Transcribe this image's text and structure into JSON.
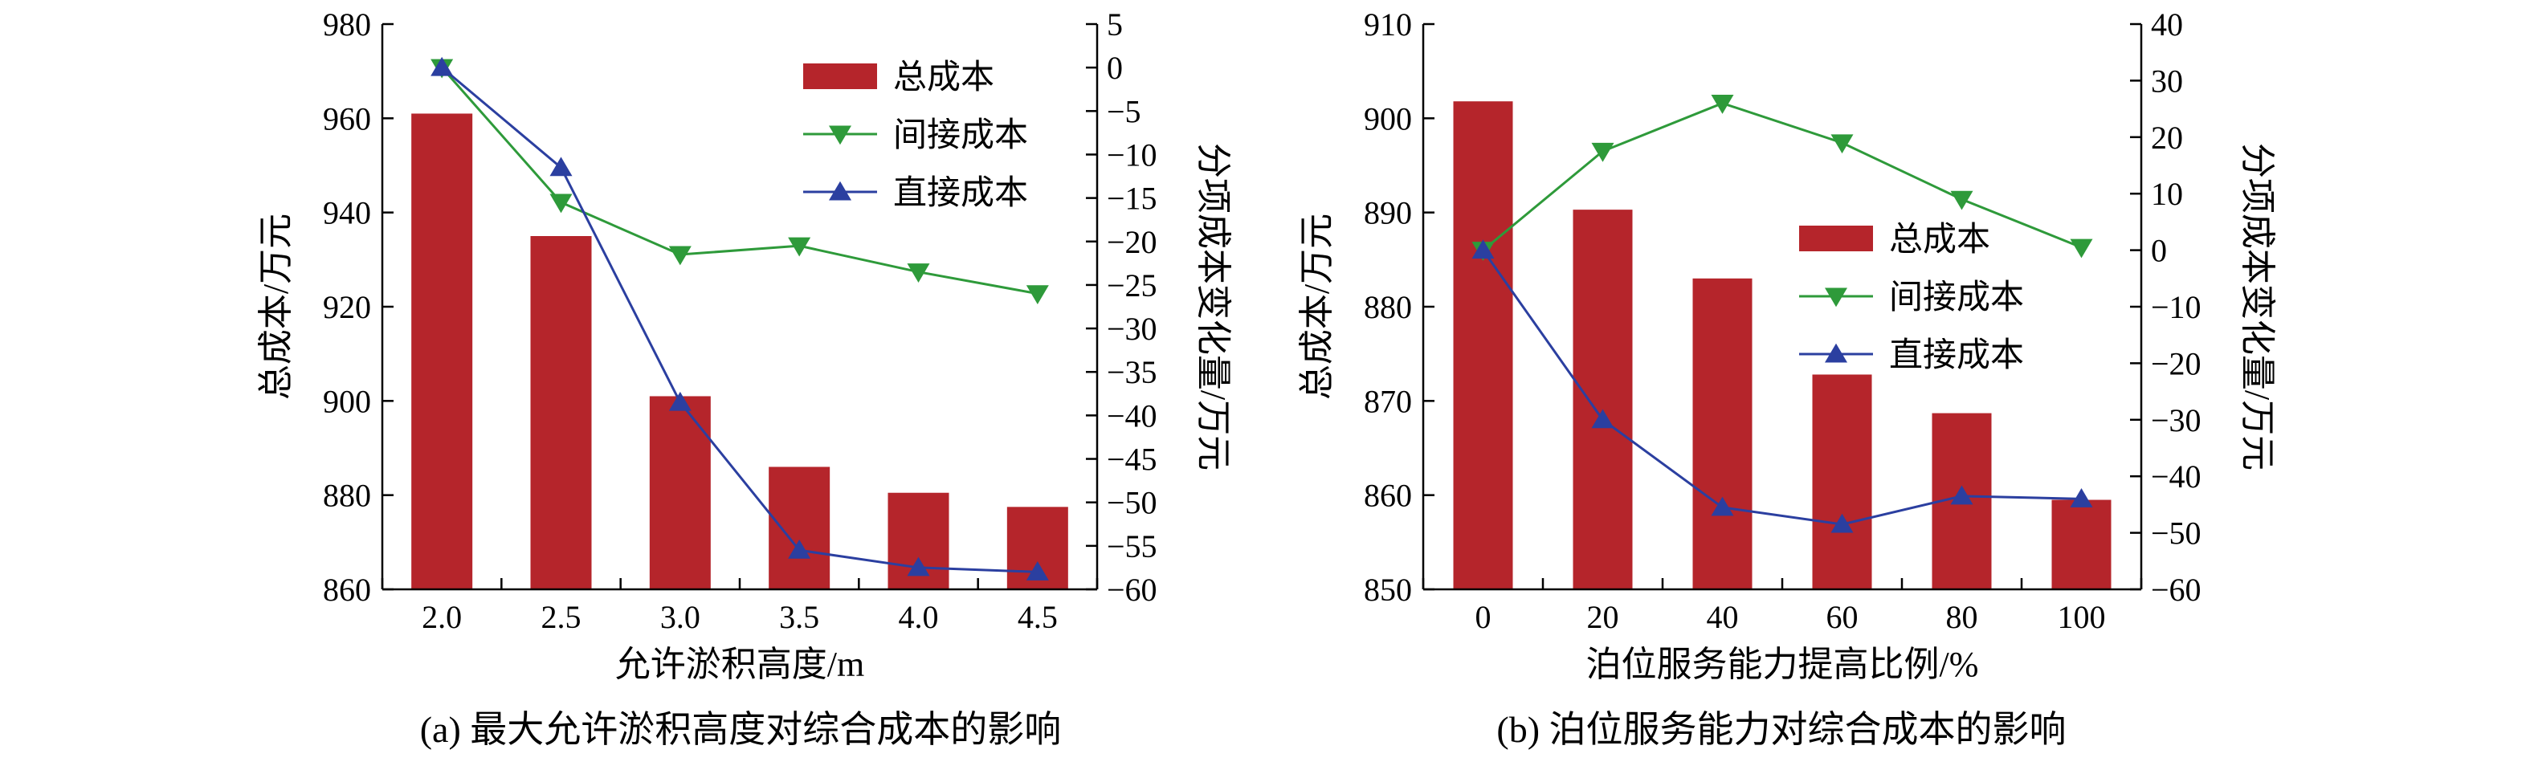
{
  "colors": {
    "bar": "#b5252b",
    "indirect": "#2e9a3a",
    "direct": "#2b3fa0",
    "axis": "#000000"
  },
  "chart_data": [
    {
      "type": "bar",
      "caption": "(a) 最大允许淤积高度对综合成本的影响",
      "xlabel": "允许淤积高度/m",
      "ylabel": "总成本/万元",
      "y2label": "分项成本变化量/万元",
      "categories": [
        "2.0",
        "2.5",
        "3.0",
        "3.5",
        "4.0",
        "4.5"
      ],
      "ylim": [
        860,
        980
      ],
      "yticks": [
        "860",
        "880",
        "900",
        "920",
        "940",
        "960",
        "980"
      ],
      "y2lim": [
        -60,
        5
      ],
      "y2ticks": [
        "-60",
        "-55",
        "-50",
        "-45",
        "-40",
        "-35",
        "-30",
        "-25",
        "-20",
        "-15",
        "-10",
        "-5",
        "0",
        "5"
      ],
      "legend": [
        "总成本",
        "间接成本",
        "直接成本"
      ],
      "legend_position": "top-right",
      "series": [
        {
          "name": "总成本",
          "type": "bar",
          "axis": "left",
          "values": [
            961,
            935,
            901,
            886,
            880.5,
            877.5
          ]
        },
        {
          "name": "间接成本",
          "type": "line",
          "marker": "triangle-down",
          "axis": "right",
          "values": [
            0,
            -15.5,
            -21.5,
            -20.5,
            -23.5,
            -26
          ]
        },
        {
          "name": "直接成本",
          "type": "line",
          "marker": "triangle-up",
          "axis": "right",
          "values": [
            0,
            -11.5,
            -38.5,
            -55.5,
            -57.5,
            -58
          ]
        }
      ]
    },
    {
      "type": "bar",
      "caption": "(b) 泊位服务能力对综合成本的影响",
      "xlabel": "泊位服务能力提高比例/%",
      "ylabel": "总成本/万元",
      "y2label": "分项成本变化量/万元",
      "categories": [
        "0",
        "20",
        "40",
        "60",
        "80",
        "100"
      ],
      "ylim": [
        850,
        910
      ],
      "yticks": [
        "850",
        "860",
        "870",
        "880",
        "890",
        "900",
        "910"
      ],
      "y2lim": [
        -60,
        40
      ],
      "y2ticks": [
        "-60",
        "-50",
        "-40",
        "-30",
        "-20",
        "-10",
        "0",
        "10",
        "20",
        "30",
        "40"
      ],
      "legend": [
        "总成本",
        "间接成本",
        "直接成本"
      ],
      "legend_position": "center-right",
      "series": [
        {
          "name": "总成本",
          "type": "bar",
          "axis": "left",
          "values": [
            901.8,
            890.3,
            883,
            872.8,
            868.7,
            859.5
          ]
        },
        {
          "name": "间接成本",
          "type": "line",
          "marker": "triangle-down",
          "axis": "right",
          "values": [
            0,
            17.5,
            26,
            19,
            9,
            0.5
          ]
        },
        {
          "name": "直接成本",
          "type": "line",
          "marker": "triangle-up",
          "axis": "right",
          "values": [
            0,
            -30,
            -45.5,
            -48.5,
            -43.5,
            -44
          ]
        }
      ]
    }
  ]
}
